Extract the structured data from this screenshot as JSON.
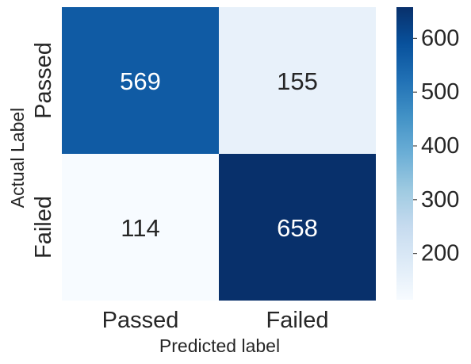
{
  "chart_data": {
    "type": "heatmap",
    "title": "",
    "xlabel": "Predicted label",
    "ylabel": "Actual Label",
    "x_categories": [
      "Passed",
      "Failed"
    ],
    "y_categories": [
      "Passed",
      "Failed"
    ],
    "values": [
      [
        569,
        155
      ],
      [
        114,
        658
      ]
    ],
    "colormap": "Blues",
    "colorbar": {
      "range": [
        114,
        658
      ],
      "ticks": [
        200,
        300,
        400,
        500,
        600
      ]
    },
    "colors": {
      "low": "#f7fbff",
      "high": "#08306b"
    }
  }
}
